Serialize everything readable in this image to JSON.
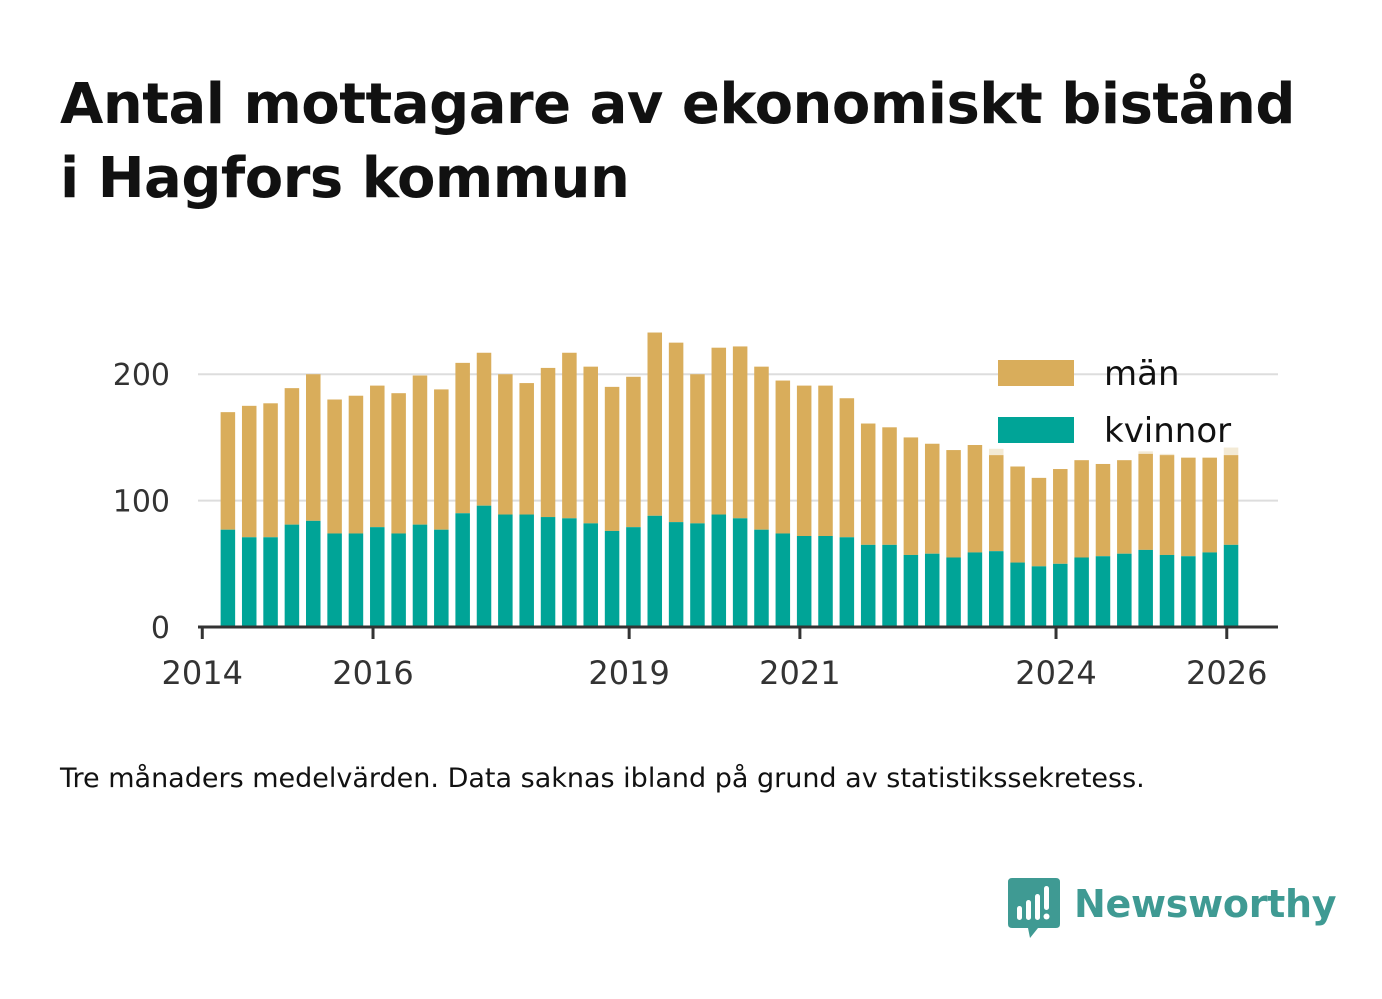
{
  "title": [
    "Antal mottagare av ekonomiskt bistånd",
    "i Hagfors kommun"
  ],
  "caption": "Tre månaders medelvärden. Data saknas ibland på grund av statistikssekretess.",
  "brand": {
    "name": "Newsworthy",
    "icon": "newsworthy-logo-icon",
    "color": "#3f9a93"
  },
  "chart_data": {
    "type": "bar",
    "stacked": true,
    "x_start_year": 2014.3,
    "x_step_years": 0.25,
    "x": [
      "2014-Q2",
      "2014-Q3",
      "2014-Q4",
      "2015-Q1",
      "2015-Q2",
      "2015-Q3",
      "2015-Q4",
      "2016-Q1",
      "2016-Q2",
      "2016-Q3",
      "2016-Q4",
      "2017-Q1",
      "2017-Q2",
      "2017-Q3",
      "2017-Q4",
      "2018-Q1",
      "2018-Q2",
      "2018-Q3",
      "2018-Q4",
      "2019-Q1",
      "2019-Q2",
      "2019-Q3",
      "2019-Q4",
      "2020-Q1",
      "2020-Q2",
      "2020-Q3",
      "2020-Q4",
      "2021-Q1",
      "2021-Q2",
      "2021-Q3",
      "2021-Q4",
      "2022-Q1",
      "2022-Q2",
      "2022-Q3",
      "2022-Q4",
      "2023-Q1",
      "2023-Q2",
      "2023-Q3",
      "2023-Q4",
      "2024-Q1",
      "2024-Q2",
      "2024-Q3",
      "2024-Q4",
      "2025-Q1",
      "2025-Q2",
      "2025-Q3",
      "2025-Q4",
      "2026-Q1"
    ],
    "series": [
      {
        "name": "kvinnor",
        "color": "#00a497",
        "values": [
          77,
          71,
          71,
          81,
          84,
          74,
          74,
          79,
          74,
          81,
          77,
          90,
          96,
          89,
          89,
          87,
          86,
          82,
          76,
          79,
          88,
          83,
          82,
          89,
          86,
          77,
          74,
          72,
          72,
          71,
          65,
          65,
          57,
          58,
          55,
          59,
          60,
          51,
          48,
          50,
          55,
          56,
          58,
          61,
          57,
          56,
          59,
          65
        ]
      },
      {
        "name": "män",
        "color": "#d9ad5b",
        "values": [
          93,
          104,
          106,
          108,
          116,
          106,
          109,
          112,
          111,
          118,
          111,
          119,
          121,
          111,
          104,
          118,
          131,
          124,
          114,
          119,
          145,
          142,
          118,
          132,
          136,
          129,
          121,
          119,
          119,
          110,
          96,
          93,
          93,
          87,
          85,
          85,
          76,
          76,
          70,
          75,
          77,
          73,
          74,
          76,
          79,
          78,
          75,
          71
        ]
      }
    ],
    "uncertainty": {
      "color": "#f3ead5",
      "values": [
        0,
        0,
        0,
        0,
        0,
        0,
        0,
        0,
        0,
        0,
        0,
        0,
        0,
        0,
        0,
        0,
        0,
        0,
        0,
        0,
        0,
        0,
        0,
        0,
        0,
        0,
        0,
        0,
        0,
        0,
        0,
        0,
        0,
        0,
        0,
        0,
        5,
        0,
        0,
        0,
        0,
        0,
        0,
        2,
        1,
        0,
        0,
        6
      ]
    },
    "xticks": [
      2014,
      2016,
      2019,
      2021,
      2024,
      2026
    ],
    "xlim": [
      2013.95,
      2026.6
    ],
    "yticks": [
      0,
      100,
      200
    ],
    "ylim": [
      0,
      235
    ],
    "grid": true,
    "legend": {
      "position": "top-right",
      "entries": [
        "män",
        "kvinnor"
      ]
    },
    "xlabel": "",
    "ylabel": ""
  }
}
